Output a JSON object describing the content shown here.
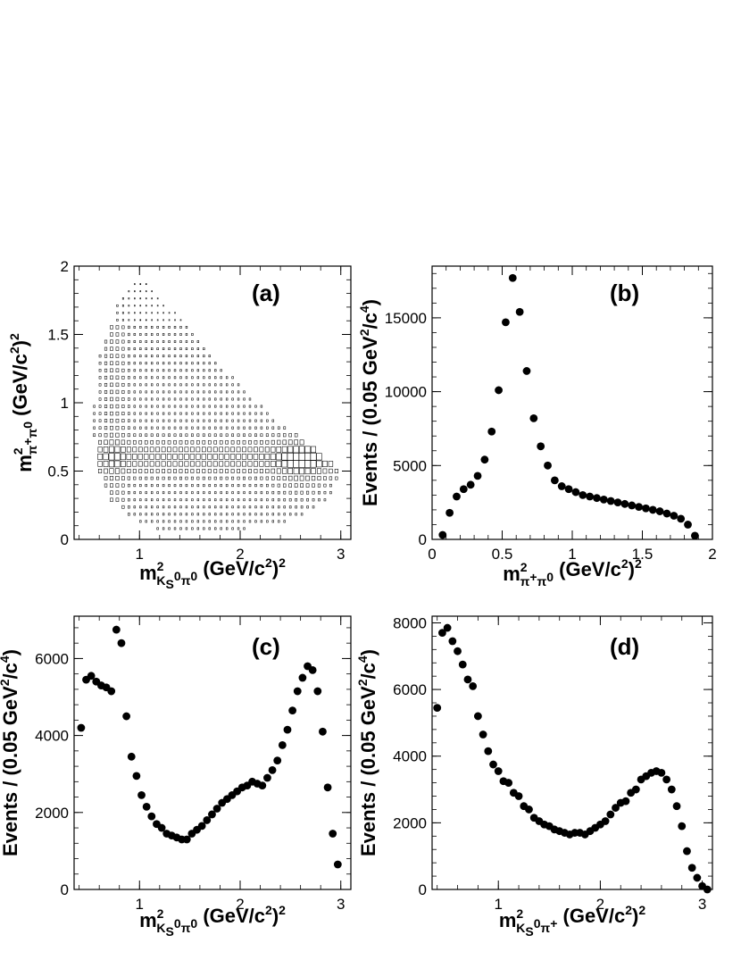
{
  "chart_data": [
    {
      "id": "a",
      "type": "scatter",
      "title": "(a)",
      "xlabel": {
        "main": "m",
        "sup": "2",
        "sub": "K",
        "subsub": "S",
        "subsup": "0",
        "sub2": "π",
        "sub2sup": "0",
        "unit": " (GeV/c",
        "unit_sup": "2",
        "unit_end": ")",
        "unit_sup2": "2"
      },
      "ylabel": {
        "main": "m",
        "sup": "2",
        "sub": "π",
        "subsup": "+",
        "sub2": "π",
        "sub2sup": "0",
        "unit": " (GeV/c",
        "unit_sup": "2",
        "unit_end": ")",
        "unit_sup2": "2"
      },
      "xlim": [
        0.35,
        3.1
      ],
      "ylim": [
        0,
        2
      ],
      "xticks": [
        1,
        2,
        3
      ],
      "xtick_labels": [
        "1",
        "2",
        "3"
      ],
      "yticks": [
        0,
        0.5,
        1,
        1.5,
        2
      ],
      "ytick_labels": [
        "0",
        "0.5",
        "1",
        "1.5",
        "2"
      ],
      "description_kind": "Dalitz plot box histogram",
      "boundary_x": [
        0.62,
        0.72,
        0.8,
        0.88,
        0.95,
        1.05,
        1.12,
        1.18,
        1.28,
        1.45,
        1.65,
        1.85,
        2.05,
        2.25,
        2.45,
        2.65,
        2.82,
        2.95,
        2.98,
        2.9,
        2.7,
        2.4,
        2.0,
        1.6,
        1.2,
        0.9,
        0.7,
        0.6,
        0.55,
        0.55,
        0.56,
        0.6
      ],
      "boundary_y": [
        1.35,
        1.6,
        1.75,
        1.85,
        1.88,
        1.88,
        1.87,
        1.8,
        1.72,
        1.58,
        1.42,
        1.25,
        1.1,
        0.95,
        0.82,
        0.72,
        0.62,
        0.52,
        0.45,
        0.32,
        0.2,
        0.12,
        0.07,
        0.05,
        0.07,
        0.16,
        0.3,
        0.5,
        0.75,
        1.0,
        1.2,
        1.35
      ]
    },
    {
      "id": "b",
      "type": "scatter",
      "title": "(b)",
      "ylabel_text": "Events / (0.05 GeV",
      "ylabel_sup": "2",
      "ylabel_mid": "/c",
      "ylabel_sup2": "4",
      "ylabel_end": ")",
      "xlabel": {
        "main": "m",
        "sup": "2",
        "sub": "π",
        "subsup": "+",
        "sub2": "π",
        "sub2sup": "0",
        "unit": " (GeV/c",
        "unit_sup": "2",
        "unit_end": ")",
        "unit_sup2": "2"
      },
      "xlim": [
        0,
        2
      ],
      "ylim": [
        0,
        18500
      ],
      "xticks": [
        0,
        0.5,
        1,
        1.5,
        2
      ],
      "xtick_labels": [
        "0",
        "0.5",
        "1",
        "1.5",
        "2"
      ],
      "yticks": [
        0,
        5000,
        10000,
        15000
      ],
      "ytick_labels": [
        "0",
        "5000",
        "10000",
        "15000"
      ],
      "x": [
        0.075,
        0.125,
        0.175,
        0.225,
        0.275,
        0.325,
        0.375,
        0.425,
        0.475,
        0.525,
        0.575,
        0.625,
        0.675,
        0.725,
        0.775,
        0.825,
        0.875,
        0.925,
        0.975,
        1.025,
        1.075,
        1.125,
        1.175,
        1.225,
        1.275,
        1.325,
        1.375,
        1.425,
        1.475,
        1.525,
        1.575,
        1.625,
        1.675,
        1.725,
        1.775,
        1.825,
        1.875
      ],
      "y": [
        300,
        1800,
        2900,
        3400,
        3700,
        4300,
        5400,
        7300,
        10100,
        14700,
        17700,
        15400,
        11400,
        8200,
        6300,
        5000,
        4000,
        3600,
        3400,
        3200,
        3000,
        2900,
        2800,
        2700,
        2600,
        2500,
        2400,
        2300,
        2200,
        2100,
        2000,
        1900,
        1750,
        1600,
        1400,
        1000,
        250
      ]
    },
    {
      "id": "c",
      "type": "scatter",
      "title": "(c)",
      "ylabel_text": "Events / (0.05 GeV",
      "ylabel_sup": "2",
      "ylabel_mid": "/c",
      "ylabel_sup2": "4",
      "ylabel_end": ")",
      "xlabel": {
        "main": "m",
        "sup": "2",
        "sub": "K",
        "subsub": "S",
        "subsup": "0",
        "sub2": "π",
        "sub2sup": "0",
        "unit": " (GeV/c",
        "unit_sup": "2",
        "unit_end": ")",
        "unit_sup2": "2"
      },
      "xlim": [
        0.35,
        3.1
      ],
      "ylim": [
        0,
        7100
      ],
      "xticks": [
        1,
        2,
        3
      ],
      "xtick_labels": [
        "1",
        "2",
        "3"
      ],
      "yticks": [
        0,
        2000,
        4000,
        6000
      ],
      "ytick_labels": [
        "0",
        "2000",
        "4000",
        "6000"
      ],
      "x": [
        0.42,
        0.47,
        0.52,
        0.57,
        0.62,
        0.67,
        0.72,
        0.77,
        0.82,
        0.87,
        0.92,
        0.97,
        1.02,
        1.07,
        1.12,
        1.17,
        1.22,
        1.27,
        1.32,
        1.37,
        1.42,
        1.47,
        1.52,
        1.57,
        1.62,
        1.67,
        1.72,
        1.77,
        1.82,
        1.87,
        1.92,
        1.97,
        2.02,
        2.07,
        2.12,
        2.17,
        2.22,
        2.27,
        2.32,
        2.37,
        2.42,
        2.47,
        2.52,
        2.57,
        2.62,
        2.67,
        2.72,
        2.77,
        2.82,
        2.87,
        2.92,
        2.97
      ],
      "y": [
        4200,
        5450,
        5550,
        5400,
        5300,
        5250,
        5150,
        6750,
        6400,
        4500,
        3450,
        2950,
        2450,
        2150,
        1900,
        1700,
        1600,
        1450,
        1400,
        1350,
        1300,
        1300,
        1450,
        1550,
        1650,
        1800,
        1950,
        2100,
        2250,
        2350,
        2450,
        2550,
        2650,
        2700,
        2800,
        2750,
        2700,
        2900,
        3100,
        3350,
        3750,
        4150,
        4650,
        5150,
        5500,
        5800,
        5700,
        5150,
        4100,
        2650,
        1450,
        650
      ]
    },
    {
      "id": "d",
      "type": "scatter",
      "title": "(d)",
      "ylabel_text": "Events / (0.05 GeV",
      "ylabel_sup": "2",
      "ylabel_mid": "/c",
      "ylabel_sup2": "4",
      "ylabel_end": ")",
      "xlabel": {
        "main": "m",
        "sup": "2",
        "sub": "K",
        "subsub": "S",
        "subsup": "0",
        "sub2": "π",
        "sub2sup": "+",
        "unit": " (GeV/c",
        "unit_sup": "2",
        "unit_end": ")",
        "unit_sup2": "2"
      },
      "xlim": [
        0.35,
        3.1
      ],
      "ylim": [
        0,
        8200
      ],
      "xticks": [
        1,
        2,
        3
      ],
      "xtick_labels": [
        "1",
        "2",
        "3"
      ],
      "yticks": [
        0,
        2000,
        4000,
        6000,
        8000
      ],
      "ytick_labels": [
        "0",
        "2000",
        "4000",
        "6000",
        "8000"
      ],
      "x": [
        0.4,
        0.45,
        0.5,
        0.55,
        0.6,
        0.65,
        0.7,
        0.75,
        0.8,
        0.85,
        0.9,
        0.95,
        1.0,
        1.05,
        1.1,
        1.15,
        1.2,
        1.25,
        1.3,
        1.35,
        1.4,
        1.45,
        1.5,
        1.55,
        1.6,
        1.65,
        1.7,
        1.75,
        1.8,
        1.85,
        1.9,
        1.95,
        2.0,
        2.05,
        2.1,
        2.15,
        2.2,
        2.25,
        2.3,
        2.35,
        2.4,
        2.45,
        2.5,
        2.55,
        2.6,
        2.65,
        2.7,
        2.75,
        2.8,
        2.85,
        2.9,
        2.95,
        3.0,
        3.05
      ],
      "y": [
        5450,
        7700,
        7850,
        7450,
        7150,
        6750,
        6300,
        6100,
        5200,
        4650,
        4150,
        3750,
        3550,
        3250,
        3200,
        2900,
        2800,
        2500,
        2400,
        2150,
        2050,
        1950,
        1900,
        1800,
        1750,
        1700,
        1650,
        1700,
        1700,
        1650,
        1750,
        1850,
        1950,
        2050,
        2250,
        2450,
        2600,
        2650,
        2900,
        3000,
        3300,
        3400,
        3500,
        3550,
        3500,
        3300,
        3000,
        2500,
        1900,
        1150,
        650,
        350,
        100,
        0
      ]
    }
  ]
}
